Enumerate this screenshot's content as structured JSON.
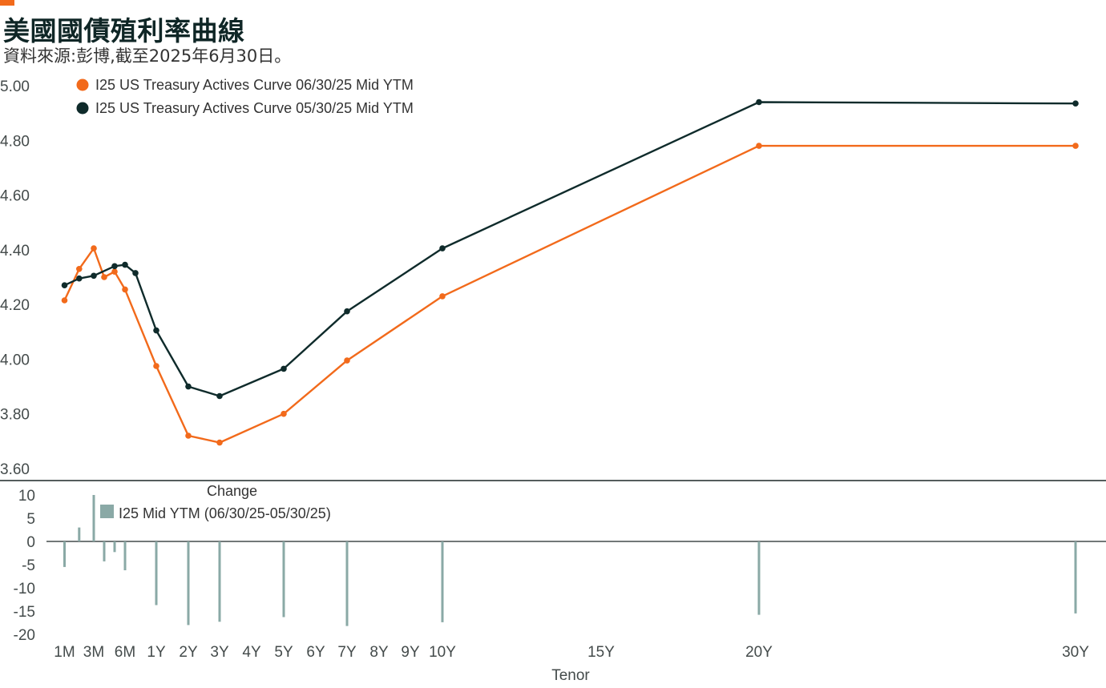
{
  "title": "美國國債殖利率曲線",
  "subtitle": "資料來源:彭博,截至2025年6月30日。",
  "colors": {
    "accent": "#f26a1b",
    "series_current": "#f26a1b",
    "series_prior": "#0f2b2b",
    "change_bars": "#8aa9a6",
    "axis": "#444b4b"
  },
  "chart_data": [
    {
      "type": "line",
      "x_unit": "years",
      "x": [
        0.0833,
        0.1667,
        0.25,
        0.3333,
        0.4167,
        0.5,
        1,
        2,
        3,
        5,
        7,
        10,
        20,
        30
      ],
      "ylim": [
        3.6,
        5.0
      ],
      "yticks": [
        "5.00",
        "4.80",
        "4.60",
        "4.40",
        "4.20",
        "4.00",
        "3.80",
        "3.60"
      ],
      "xticks": [
        "1M",
        "3M",
        "6M",
        "1Y",
        "2Y",
        "3Y",
        "4Y",
        "5Y",
        "6Y",
        "7Y",
        "8Y",
        "9Y",
        "10Y",
        "15Y",
        "20Y",
        "30Y"
      ],
      "grid": false,
      "legend_position": "top-left",
      "series": [
        {
          "name": "I25 US Treasury Actives Curve 06/30/25 Mid YTM",
          "values": [
            4.215,
            4.33,
            4.405,
            4.3,
            4.32,
            4.255,
            3.975,
            3.72,
            3.695,
            3.8,
            3.995,
            4.23,
            4.78,
            4.78
          ]
        },
        {
          "name": "I25 US Treasury Actives Curve 05/30/25 Mid YTM",
          "x": [
            0.0833,
            0.1667,
            0.25,
            0.4167,
            0.5,
            0.6667,
            1,
            2,
            3,
            5,
            7,
            10,
            20,
            30
          ],
          "values": [
            4.27,
            4.295,
            4.305,
            4.34,
            4.345,
            4.315,
            4.105,
            3.9,
            3.865,
            3.965,
            4.175,
            4.405,
            4.94,
            4.935
          ]
        }
      ]
    },
    {
      "type": "bar",
      "title": "Change",
      "xlabel": "Tenor",
      "x_unit": "years",
      "ylim": [
        -20,
        10
      ],
      "yticks": [
        "10",
        "5",
        "0",
        "-5",
        "-10",
        "-15",
        "-20"
      ],
      "series": [
        {
          "name": "I25 Mid YTM (06/30/25-05/30/25)",
          "x": [
            0.0833,
            0.1667,
            0.25,
            0.3333,
            0.4167,
            0.5,
            1,
            2,
            3,
            5,
            7,
            10,
            20,
            30
          ],
          "values": [
            -5.5,
            3.0,
            10.0,
            -4.3,
            -2.3,
            -6.2,
            -13.7,
            -18.0,
            -17.3,
            -16.3,
            -18.2,
            -17.4,
            -15.8,
            -15.5
          ]
        }
      ]
    }
  ]
}
